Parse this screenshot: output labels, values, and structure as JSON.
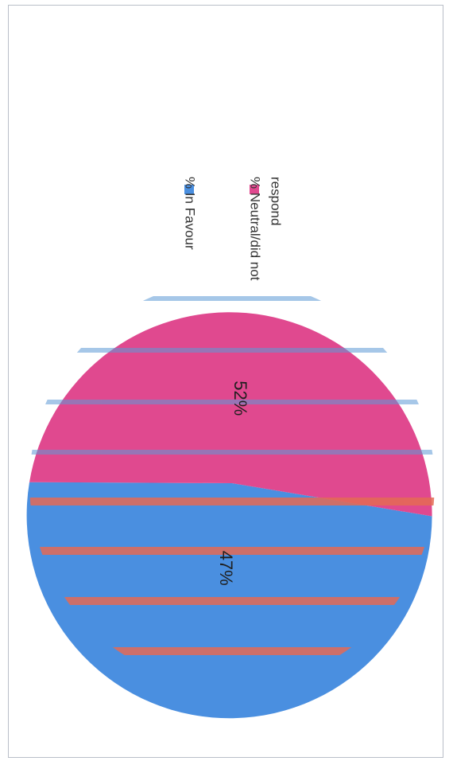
{
  "chart_data": {
    "type": "pie",
    "slices": [
      {
        "label": "% In Favour",
        "value": 52,
        "color": "#4a8fe0",
        "data_label": "52%"
      },
      {
        "label": "% Neutral/did not respond",
        "value": 47,
        "color": "#e0498f",
        "data_label": "47%"
      }
    ],
    "legend": {
      "position": "right",
      "entries": [
        "% In Favour",
        "% Neutral/did not",
        "respond"
      ]
    },
    "stripe_colors": [
      "#5d9ad6",
      "#e46a55"
    ]
  }
}
